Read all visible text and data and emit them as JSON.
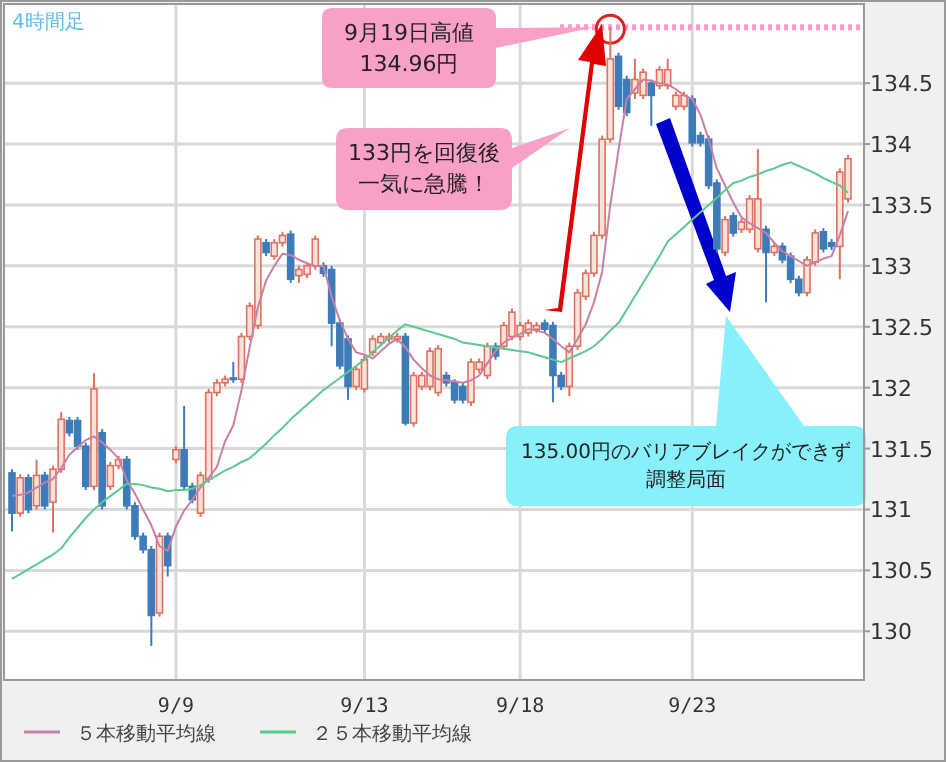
{
  "chart_data": {
    "type": "candlestick",
    "categories": [
      null,
      null,
      null,
      null,
      null,
      null,
      null,
      null,
      null,
      null,
      null,
      null,
      null,
      null,
      null,
      null,
      null,
      null,
      null,
      null,
      "9/9",
      null,
      null,
      null,
      null,
      null,
      null,
      null,
      null,
      null,
      null,
      null,
      null,
      null,
      null,
      null,
      null,
      null,
      null,
      null,
      null,
      null,
      null,
      "9/13",
      null,
      null,
      null,
      null,
      null,
      null,
      null,
      null,
      null,
      null,
      null,
      null,
      null,
      null,
      null,
      null,
      null,
      null,
      "9/18",
      null,
      null,
      null,
      null,
      null,
      null,
      null,
      null,
      null,
      null,
      null,
      null,
      null,
      null,
      null,
      null,
      null,
      null,
      null,
      null,
      "9/23",
      null,
      null,
      null,
      null,
      null,
      null,
      null,
      null,
      null,
      null,
      null,
      null,
      null,
      null,
      null,
      null,
      null,
      null,
      null
    ],
    "ohlc": [
      [
        131.3,
        131.33,
        130.82,
        130.97
      ],
      [
        130.97,
        131.29,
        130.94,
        131.26
      ],
      [
        131.26,
        131.29,
        130.97,
        131.0
      ],
      [
        131.03,
        131.41,
        131.0,
        131.28
      ],
      [
        131.28,
        131.31,
        131.0,
        131.03
      ],
      [
        131.06,
        131.36,
        130.81,
        131.33
      ],
      [
        131.33,
        131.8,
        131.3,
        131.74
      ],
      [
        131.73,
        131.76,
        131.6,
        131.63
      ],
      [
        131.73,
        131.76,
        131.49,
        131.52
      ],
      [
        131.52,
        131.55,
        131.16,
        131.19
      ],
      [
        131.19,
        132.12,
        131.16,
        131.99
      ],
      [
        131.63,
        131.66,
        131.0,
        131.03
      ],
      [
        131.19,
        131.39,
        131.16,
        131.36
      ],
      [
        131.36,
        131.44,
        131.33,
        131.41
      ],
      [
        131.41,
        131.44,
        131.0,
        131.03
      ],
      [
        131.03,
        131.06,
        130.75,
        130.78
      ],
      [
        130.78,
        130.81,
        130.64,
        130.67
      ],
      [
        130.67,
        130.7,
        129.88,
        130.13
      ],
      [
        130.15,
        130.81,
        130.12,
        130.78
      ],
      [
        130.78,
        130.81,
        130.45,
        130.54
      ],
      [
        131.41,
        131.52,
        131.38,
        131.49
      ],
      [
        131.49,
        131.85,
        131.16,
        131.19
      ],
      [
        131.19,
        131.22,
        131.05,
        131.08
      ],
      [
        130.97,
        131.31,
        130.94,
        131.28
      ],
      [
        131.25,
        131.99,
        131.22,
        131.96
      ],
      [
        131.96,
        132.07,
        131.93,
        132.04
      ],
      [
        132.04,
        132.1,
        132.01,
        132.07
      ],
      [
        132.08,
        132.21,
        132.04,
        132.07
      ],
      [
        132.07,
        132.45,
        132.04,
        132.42
      ],
      [
        132.42,
        132.7,
        132.39,
        132.67
      ],
      [
        132.51,
        133.25,
        132.48,
        133.22
      ],
      [
        133.19,
        133.22,
        133.08,
        133.11
      ],
      [
        133.08,
        133.22,
        133.05,
        133.19
      ],
      [
        133.19,
        133.28,
        133.16,
        133.25
      ],
      [
        133.26,
        133.29,
        132.86,
        132.89
      ],
      [
        132.92,
        133.0,
        132.86,
        132.97
      ],
      [
        132.93,
        133.03,
        132.9,
        133.0
      ],
      [
        133.0,
        133.25,
        132.97,
        133.22
      ],
      [
        133.0,
        133.03,
        132.91,
        132.94
      ],
      [
        132.97,
        133.0,
        132.34,
        132.53
      ],
      [
        132.53,
        132.56,
        132.15,
        132.18
      ],
      [
        132.4,
        132.43,
        131.9,
        132.01
      ],
      [
        132.01,
        132.18,
        131.98,
        132.15
      ],
      [
        131.99,
        132.26,
        131.96,
        132.23
      ],
      [
        132.29,
        132.43,
        132.26,
        132.4
      ],
      [
        132.37,
        132.45,
        132.34,
        132.42
      ],
      [
        132.4,
        132.45,
        132.37,
        132.42
      ],
      [
        132.4,
        132.45,
        132.37,
        132.42
      ],
      [
        132.42,
        132.45,
        131.69,
        131.71
      ],
      [
        131.71,
        132.13,
        131.68,
        132.1
      ],
      [
        132.01,
        132.13,
        131.98,
        132.1
      ],
      [
        132.01,
        132.33,
        131.98,
        132.3
      ],
      [
        131.96,
        132.35,
        131.93,
        132.32
      ],
      [
        132.1,
        132.13,
        132.01,
        132.04
      ],
      [
        132.04,
        132.07,
        131.87,
        131.9
      ],
      [
        132.01,
        132.04,
        131.87,
        131.9
      ],
      [
        131.88,
        132.24,
        131.85,
        132.21
      ],
      [
        132.15,
        132.24,
        132.12,
        132.21
      ],
      [
        132.1,
        132.37,
        132.07,
        132.34
      ],
      [
        132.34,
        132.37,
        132.23,
        132.26
      ],
      [
        132.34,
        132.54,
        132.31,
        132.51
      ],
      [
        132.42,
        132.65,
        132.39,
        132.62
      ],
      [
        132.42,
        132.54,
        132.39,
        132.51
      ],
      [
        132.45,
        132.56,
        132.42,
        132.53
      ],
      [
        132.48,
        132.54,
        132.45,
        132.51
      ],
      [
        132.53,
        132.56,
        132.45,
        132.48
      ],
      [
        132.51,
        132.54,
        131.88,
        132.1
      ],
      [
        132.1,
        132.13,
        131.98,
        132.01
      ],
      [
        132.01,
        132.37,
        131.93,
        132.34
      ],
      [
        132.34,
        132.81,
        132.31,
        132.78
      ],
      [
        132.75,
        132.97,
        132.72,
        132.94
      ],
      [
        132.94,
        133.28,
        132.91,
        133.25
      ],
      [
        133.25,
        134.07,
        133.22,
        134.04
      ],
      [
        134.04,
        134.96,
        134.01,
        134.7
      ],
      [
        134.72,
        134.75,
        134.28,
        134.31
      ],
      [
        134.53,
        134.56,
        134.23,
        134.26
      ],
      [
        134.42,
        134.7,
        134.37,
        134.53
      ],
      [
        134.4,
        134.62,
        134.37,
        134.59
      ],
      [
        134.5,
        134.53,
        134.15,
        134.4
      ],
      [
        134.48,
        134.64,
        134.45,
        134.61
      ],
      [
        134.48,
        134.7,
        134.45,
        134.61
      ],
      [
        134.31,
        134.43,
        134.28,
        134.4
      ],
      [
        134.31,
        134.43,
        134.28,
        134.4
      ],
      [
        134.37,
        134.4,
        133.98,
        134.01
      ],
      [
        134.07,
        134.1,
        133.98,
        134.01
      ],
      [
        134.04,
        134.07,
        133.63,
        133.66
      ],
      [
        133.68,
        133.71,
        133.11,
        133.14
      ],
      [
        133.11,
        133.41,
        133.08,
        133.38
      ],
      [
        133.41,
        133.44,
        133.24,
        133.27
      ],
      [
        133.3,
        133.39,
        133.27,
        133.36
      ],
      [
        133.3,
        133.58,
        133.27,
        133.55
      ],
      [
        133.14,
        133.96,
        133.11,
        133.55
      ],
      [
        133.3,
        133.33,
        132.7,
        133.11
      ],
      [
        133.11,
        133.19,
        133.08,
        133.16
      ],
      [
        133.16,
        133.19,
        133.02,
        133.05
      ],
      [
        133.08,
        133.11,
        132.86,
        132.89
      ],
      [
        132.89,
        132.92,
        132.75,
        132.78
      ],
      [
        132.78,
        133.08,
        132.75,
        133.05
      ],
      [
        133.03,
        133.3,
        133.0,
        133.27
      ],
      [
        133.28,
        133.31,
        133.11,
        133.14
      ],
      [
        133.19,
        133.22,
        133.13,
        133.16
      ],
      [
        133.16,
        133.8,
        132.89,
        133.77
      ],
      [
        133.55,
        133.91,
        133.52,
        133.88
      ]
    ],
    "colors": [
      "#3d7cb8",
      "#e0715e",
      "#3d7cb8",
      "#e0715e",
      "#3d7cb8",
      "#e0715e",
      "#e0715e",
      "#3d7cb8",
      "#3d7cb8",
      "#3d7cb8",
      "#e0715e",
      "#3d7cb8",
      "#e0715e",
      "#e0715e",
      "#3d7cb8",
      "#3d7cb8",
      "#3d7cb8",
      "#3d7cb8",
      "#e0715e",
      "#3d7cb8",
      "#e0715e",
      "#3d7cb8",
      "#3d7cb8",
      "#e0715e",
      "#e0715e",
      "#e0715e",
      "#e0715e",
      "#3d7cb8",
      "#e0715e",
      "#e0715e",
      "#e0715e",
      "#3d7cb8",
      "#e0715e",
      "#e0715e",
      "#3d7cb8",
      "#e0715e",
      "#e0715e",
      "#e0715e",
      "#3d7cb8",
      "#3d7cb8",
      "#3d7cb8",
      "#3d7cb8",
      "#e0715e",
      "#e0715e",
      "#e0715e",
      "#e0715e",
      "#e0715e",
      "#e0715e",
      "#3d7cb8",
      "#e0715e",
      "#e0715e",
      "#e0715e",
      "#e0715e",
      "#3d7cb8",
      "#3d7cb8",
      "#3d7cb8",
      "#e0715e",
      "#e0715e",
      "#e0715e",
      "#3d7cb8",
      "#e0715e",
      "#e0715e",
      "#e0715e",
      "#e0715e",
      "#e0715e",
      "#3d7cb8",
      "#3d7cb8",
      "#3d7cb8",
      "#e0715e",
      "#e0715e",
      "#e0715e",
      "#e0715e",
      "#e0715e",
      "#e0715e",
      "#3d7cb8",
      "#3d7cb8",
      "#e0715e",
      "#e0715e",
      "#3d7cb8",
      "#e0715e",
      "#e0715e",
      "#e0715e",
      "#e0715e",
      "#3d7cb8",
      "#3d7cb8",
      "#3d7cb8",
      "#3d7cb8",
      "#e0715e",
      "#3d7cb8",
      "#e0715e",
      "#e0715e",
      "#e0715e",
      "#3d7cb8",
      "#e0715e",
      "#3d7cb8",
      "#3d7cb8",
      "#3d7cb8",
      "#e0715e",
      "#e0715e",
      "#3d7cb8",
      "#3d7cb8",
      "#e0715e",
      "#e0715e"
    ],
    "series": [
      {
        "type": "line",
        "name": "５本移動平均線",
        "color": "#c97fa6",
        "values": [
          131.11,
          131.12,
          131.14,
          131.18,
          131.22,
          131.25,
          131.34,
          131.45,
          131.51,
          131.57,
          131.6,
          131.55,
          131.49,
          131.42,
          131.24,
          131.13,
          131.0,
          130.87,
          130.7,
          130.66,
          130.86,
          130.99,
          131.08,
          131.18,
          131.26,
          131.35,
          131.56,
          131.69,
          131.98,
          132.33,
          132.66,
          132.88,
          133.0,
          133.1,
          133.09,
          133.05,
          133.02,
          133.0,
          133.0,
          132.75,
          132.55,
          132.4,
          132.29,
          132.27,
          132.24,
          132.3,
          132.36,
          132.4,
          132.33,
          132.23,
          132.16,
          132.1,
          132.07,
          132.06,
          132.05,
          132.04,
          132.06,
          132.1,
          132.2,
          132.3,
          132.37,
          132.41,
          132.44,
          132.48,
          132.47,
          132.45,
          132.4,
          132.34,
          132.29,
          132.4,
          132.52,
          132.7,
          132.95,
          133.5,
          133.95,
          134.37,
          134.45,
          134.53,
          134.52,
          134.5,
          134.49,
          134.45,
          134.4,
          134.37,
          134.24,
          134.04,
          133.8,
          133.66,
          133.52,
          133.4,
          133.35,
          133.31,
          133.27,
          133.19,
          133.12,
          133.08,
          133.04,
          133.0,
          133.03,
          133.06,
          133.08,
          133.25,
          133.45
        ]
      },
      {
        "type": "line",
        "name": "２５本移動平均線",
        "color": "#5cc98f",
        "values": [
          130.43,
          130.47,
          130.51,
          130.55,
          130.59,
          130.63,
          130.68,
          130.77,
          130.85,
          130.93,
          131.0,
          131.06,
          131.11,
          131.16,
          131.21,
          131.21,
          131.2,
          131.18,
          131.17,
          131.15,
          131.16,
          131.16,
          131.17,
          131.2,
          131.24,
          131.28,
          131.32,
          131.35,
          131.39,
          131.42,
          131.48,
          131.54,
          131.61,
          131.67,
          131.74,
          131.8,
          131.86,
          131.92,
          131.98,
          132.03,
          132.08,
          132.13,
          132.18,
          132.23,
          132.29,
          132.35,
          132.41,
          132.47,
          132.52,
          132.5,
          132.48,
          132.46,
          132.44,
          132.42,
          132.4,
          132.37,
          132.36,
          132.35,
          132.34,
          132.33,
          132.32,
          132.31,
          132.3,
          132.29,
          132.27,
          132.25,
          132.23,
          132.21,
          132.24,
          132.27,
          132.3,
          132.34,
          132.4,
          132.47,
          132.53,
          132.64,
          132.75,
          132.86,
          132.97,
          133.08,
          133.2,
          133.26,
          133.32,
          133.38,
          133.44,
          133.5,
          133.56,
          133.62,
          133.68,
          133.7,
          133.73,
          133.75,
          133.78,
          133.8,
          133.83,
          133.85,
          133.82,
          133.79,
          133.76,
          133.72,
          133.69,
          133.66,
          133.6
        ]
      }
    ],
    "ylim": [
      129.6,
      135.15
    ],
    "yticks": [
      130,
      130.5,
      131,
      131.5,
      132,
      132.5,
      133,
      133.5,
      134,
      134.5
    ],
    "grid": true,
    "legend": "bottom",
    "ref_lines": [
      {
        "axis": "y",
        "value": 134.96,
        "color": "#ff99cc",
        "line_style": "dashed"
      }
    ],
    "annotations": [
      "4時間足",
      "9月19日高値134.96円",
      "133円を回復後一気に急騰！",
      "135.00円のバリアブレイクができず調整局面"
    ]
  }
}
